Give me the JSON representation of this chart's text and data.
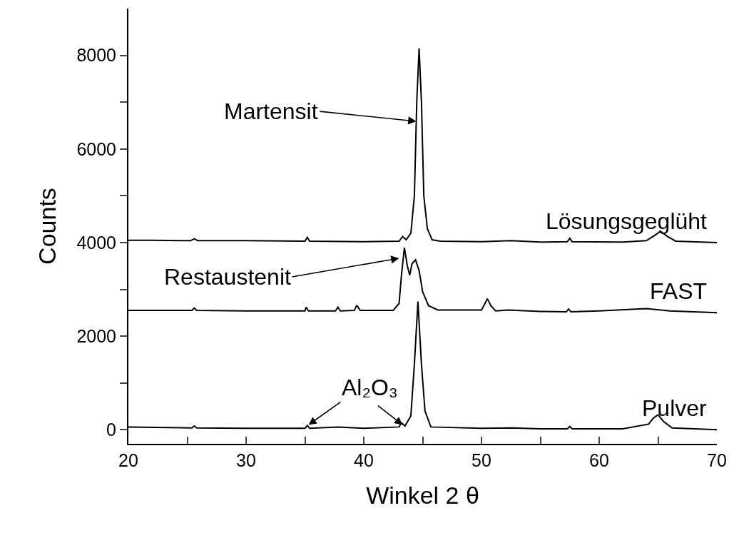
{
  "chart_data": {
    "type": "line",
    "xlabel": "Winkel 2 θ",
    "ylabel": "Counts",
    "xlim": [
      20,
      70
    ],
    "ylim": [
      -300,
      9000
    ],
    "xticks": [
      20,
      {
        "value": 25,
        "label": null
      },
      30,
      {
        "value": 35,
        "label": null
      },
      40,
      {
        "value": 45,
        "label": null
      },
      50,
      {
        "value": 55,
        "label": null
      },
      60,
      {
        "value": 65,
        "label": null
      },
      70
    ],
    "yticks": [
      0,
      {
        "value": 1000,
        "label": null
      },
      2000,
      {
        "value": 3000,
        "label": null
      },
      4000,
      {
        "value": 5000,
        "label": null
      },
      6000,
      {
        "value": 7000,
        "label": null
      },
      8000
    ],
    "grid": false,
    "legend": false,
    "marker": "none",
    "line_style": "solid",
    "series": [
      {
        "name": "Lösungsgeglüht",
        "color": "#000000",
        "x": [
          20,
          22,
          25.3,
          25.6,
          25.9,
          30,
          35.0,
          35.2,
          35.4,
          40,
          43,
          43.3,
          43.6,
          44.0,
          44.3,
          44.5,
          44.7,
          44.9,
          45.1,
          45.4,
          45.8,
          46.5,
          50,
          52.5,
          55,
          57.3,
          57.5,
          57.7,
          62,
          64,
          64.7,
          65.2,
          65.8,
          66.5,
          70
        ],
        "values": [
          4050,
          4050,
          4040,
          4080,
          4040,
          4040,
          4030,
          4110,
          4030,
          4020,
          4030,
          4130,
          4060,
          4200,
          5000,
          7000,
          8150,
          7000,
          5000,
          4300,
          4060,
          4030,
          4020,
          4040,
          4010,
          4020,
          4090,
          4020,
          4010,
          4040,
          4150,
          4240,
          4130,
          4030,
          4000
        ]
      },
      {
        "name": "FAST",
        "color": "#000000",
        "x": [
          20,
          25.4,
          25.6,
          25.8,
          30,
          35.0,
          35.1,
          35.3,
          37.6,
          37.8,
          38.0,
          39.2,
          39.4,
          39.7,
          42.5,
          43.0,
          43.2,
          43.45,
          43.7,
          43.9,
          44.1,
          44.4,
          44.7,
          45.0,
          45.5,
          46.3,
          50,
          50.3,
          50.5,
          50.8,
          51.2,
          52.3,
          55,
          57.2,
          57.4,
          57.6,
          60,
          64,
          66,
          70
        ],
        "values": [
          2550,
          2550,
          2600,
          2550,
          2540,
          2540,
          2620,
          2540,
          2540,
          2620,
          2540,
          2550,
          2660,
          2550,
          2550,
          2700,
          3300,
          3890,
          3500,
          3300,
          3550,
          3630,
          3400,
          2950,
          2650,
          2560,
          2560,
          2700,
          2800,
          2650,
          2540,
          2560,
          2530,
          2520,
          2580,
          2520,
          2540,
          2590,
          2540,
          2500
        ]
      },
      {
        "name": "Pulver",
        "color": "#000000",
        "x": [
          20,
          25.4,
          25.6,
          25.8,
          30,
          35.0,
          35.2,
          35.4,
          37.8,
          40,
          43,
          43.2,
          43.5,
          44.0,
          44.3,
          44.6,
          44.9,
          45.2,
          45.7,
          50,
          52.6,
          55,
          57.3,
          57.5,
          57.7,
          62,
          64.2,
          64.6,
          65.0,
          65.5,
          66.2,
          70
        ],
        "values": [
          60,
          40,
          80,
          40,
          30,
          30,
          90,
          30,
          60,
          30,
          60,
          150,
          80,
          300,
          1400,
          2740,
          1400,
          400,
          60,
          30,
          40,
          20,
          20,
          70,
          20,
          20,
          120,
          250,
          320,
          170,
          40,
          0
        ]
      }
    ],
    "annotations": [
      {
        "text": "Martensit",
        "x": 44.45,
        "y": 6590
      },
      {
        "text": "Restaustenit",
        "x": 43.0,
        "y": 3665
      },
      {
        "text": "Al₂O₃",
        "x": 35.3,
        "y": 105
      }
    ]
  }
}
